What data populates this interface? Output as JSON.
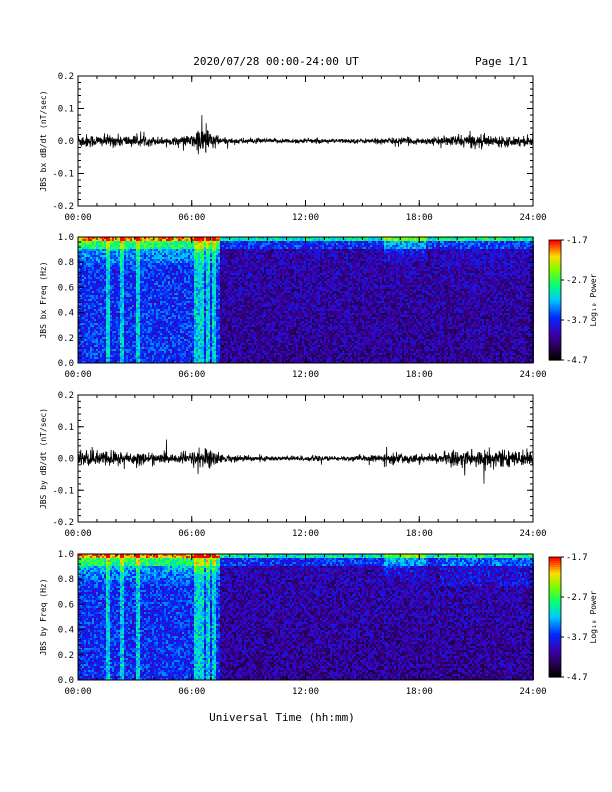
{
  "header": {
    "title": "2020/07/28  00:00-24:00 UT",
    "page": "Page 1/1"
  },
  "xlabel": "Universal Time (hh:mm)",
  "chart_data": [
    {
      "type": "line",
      "ylabel": "JBS bx dB/dt (nT/sec)",
      "xlim": [
        0,
        24
      ],
      "ylim": [
        -0.2,
        0.2
      ],
      "xticks": [
        "00:00",
        "06:00",
        "12:00",
        "18:00",
        "24:00"
      ],
      "yticks": [
        "-0.2",
        "-0.1",
        "0.0",
        "0.1",
        "0.2"
      ],
      "envelope": {
        "x": [
          0,
          1,
          2,
          3,
          4,
          5,
          6,
          6.5,
          7,
          7.5,
          8,
          9,
          10,
          11,
          12,
          13,
          14,
          15,
          16,
          17,
          18,
          19,
          20,
          21,
          22,
          23,
          24
        ],
        "amp": [
          0.025,
          0.02,
          0.02,
          0.018,
          0.015,
          0.012,
          0.02,
          0.055,
          0.04,
          0.012,
          0.01,
          0.009,
          0.008,
          0.008,
          0.008,
          0.007,
          0.007,
          0.008,
          0.01,
          0.012,
          0.01,
          0.012,
          0.02,
          0.022,
          0.018,
          0.016,
          0.018
        ]
      }
    },
    {
      "type": "heatmap",
      "ylabel": "JBS bx Freq (Hz)",
      "xlim": [
        0,
        24
      ],
      "ylim": [
        0,
        1.0
      ],
      "xticks": [
        "00:00",
        "06:00",
        "12:00",
        "18:00",
        "24:00"
      ],
      "yticks": [
        "0.0",
        "0.2",
        "0.4",
        "0.6",
        "0.8",
        "1.0"
      ],
      "colorbar": {
        "label": "Log₁₀ Power",
        "ticks": [
          "-1.7",
          "-2.7",
          "-3.7",
          "-4.7"
        ],
        "range": [
          -4.7,
          -1.7
        ]
      }
    },
    {
      "type": "line",
      "ylabel": "JBS by dB/dt (nT/sec)",
      "xlim": [
        0,
        24
      ],
      "ylim": [
        -0.2,
        0.2
      ],
      "xticks": [
        "00:00",
        "06:00",
        "12:00",
        "18:00",
        "24:00"
      ],
      "yticks": [
        "-0.2",
        "-0.1",
        "0.0",
        "0.1",
        "0.2"
      ],
      "envelope": {
        "x": [
          0,
          1,
          2,
          3,
          4,
          5,
          6,
          6.5,
          7,
          7.5,
          8,
          9,
          10,
          11,
          12,
          13,
          14,
          15,
          16,
          17,
          18,
          19,
          20,
          21,
          22,
          23,
          24
        ],
        "amp": [
          0.03,
          0.025,
          0.028,
          0.022,
          0.018,
          0.015,
          0.025,
          0.04,
          0.035,
          0.015,
          0.012,
          0.01,
          0.009,
          0.009,
          0.009,
          0.008,
          0.008,
          0.01,
          0.012,
          0.02,
          0.012,
          0.015,
          0.03,
          0.035,
          0.03,
          0.025,
          0.025
        ]
      }
    },
    {
      "type": "heatmap",
      "ylabel": "JBS by Freq (Hz)",
      "xlim": [
        0,
        24
      ],
      "ylim": [
        0,
        1.0
      ],
      "xticks": [
        "00:00",
        "06:00",
        "12:00",
        "18:00",
        "24:00"
      ],
      "yticks": [
        "0.0",
        "0.2",
        "0.4",
        "0.6",
        "0.8",
        "1.0"
      ],
      "colorbar": {
        "label": "Log₁₀ Power",
        "ticks": [
          "-1.7",
          "-2.7",
          "-3.7",
          "-4.7"
        ],
        "range": [
          -4.7,
          -1.7
        ]
      }
    }
  ]
}
